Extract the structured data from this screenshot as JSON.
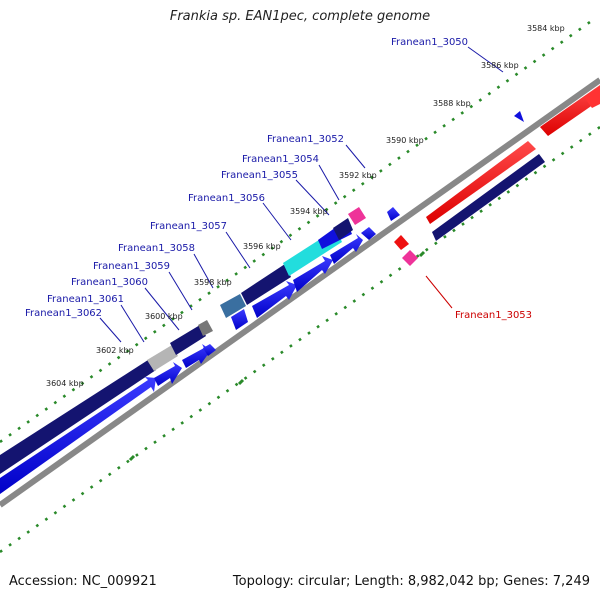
{
  "title": "Frankia sp. EAN1pec, complete genome",
  "footer": {
    "accession": "Accession: NC_009921",
    "topology": "Topology: circular; Length: 8,982,042 bp; Genes: 7,249"
  },
  "scale": {
    "ticks": [
      "3584 kbp",
      "3586 kbp",
      "3588 kbp",
      "3590 kbp",
      "3592 kbp",
      "3594 kbp",
      "3596 kbp",
      "3598 kbp",
      "3600 kbp",
      "3602 kbp",
      "3604 kbp"
    ]
  },
  "genes": {
    "forward": [
      {
        "label": "Franean1_3050",
        "strand": "forward"
      },
      {
        "label": "Franean1_3052",
        "strand": "forward"
      },
      {
        "label": "Franean1_3054",
        "strand": "forward"
      },
      {
        "label": "Franean1_3055",
        "strand": "forward"
      },
      {
        "label": "Franean1_3056",
        "strand": "forward"
      },
      {
        "label": "Franean1_3057",
        "strand": "forward"
      },
      {
        "label": "Franean1_3058",
        "strand": "forward"
      },
      {
        "label": "Franean1_3059",
        "strand": "forward"
      },
      {
        "label": "Franean1_3060",
        "strand": "forward"
      },
      {
        "label": "Franean1_3061",
        "strand": "forward"
      },
      {
        "label": "Franean1_3062",
        "strand": "forward"
      }
    ],
    "reverse": [
      {
        "label": "Franean1_3053",
        "strand": "reverse"
      }
    ]
  },
  "colors": {
    "forward_label": "#1a1aa8",
    "reverse_label": "#cc0000",
    "forward_cds": "#1010dd",
    "reverse_cds": "#ee1111",
    "gene_dark": "#141470",
    "cyan": "#22dddd",
    "pink": "#ee3399",
    "backbone": "#888888",
    "tick_dots": "#2a8a2a"
  }
}
